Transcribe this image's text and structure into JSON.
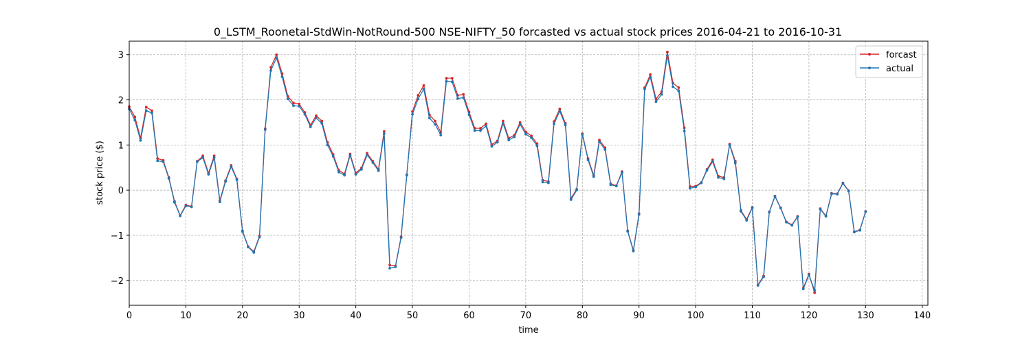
{
  "chart_data": {
    "type": "line",
    "title": "0_LSTM_Roonetal-StdWin-NotRound-500 NSE-NIFTY_50 forcasted vs actual stock prices 2016-04-21 to 2016-10-31",
    "xlabel": "time",
    "ylabel": "stock price ($)",
    "xlim": [
      0,
      141
    ],
    "ylim": [
      -2.55,
      3.3
    ],
    "xticks": [
      0,
      10,
      20,
      30,
      40,
      50,
      60,
      70,
      80,
      90,
      100,
      110,
      120,
      130,
      140
    ],
    "yticks": [
      -2,
      -1,
      0,
      1,
      2,
      3
    ],
    "grid": true,
    "legend_position": "top-right",
    "colors": {
      "forcast": "#d62728",
      "actual": "#1f77b4"
    },
    "series": [
      {
        "name": "forcast",
        "values": [
          1.85,
          1.62,
          1.15,
          1.84,
          1.76,
          0.7,
          0.66,
          0.28,
          -0.25,
          -0.56,
          -0.33,
          -0.36,
          0.64,
          0.76,
          0.38,
          0.76,
          -0.23,
          0.21,
          0.55,
          0.25,
          -0.9,
          -1.25,
          -1.36,
          -1.02,
          1.36,
          2.72,
          3.0,
          2.58,
          2.08,
          1.93,
          1.91,
          1.72,
          1.44,
          1.65,
          1.53,
          1.06,
          0.79,
          0.44,
          0.36,
          0.8,
          0.38,
          0.49,
          0.82,
          0.64,
          0.46,
          1.3,
          -1.66,
          -1.68,
          -1.03,
          0.34,
          1.74,
          2.1,
          2.32,
          1.67,
          1.53,
          1.28,
          2.48,
          2.48,
          2.1,
          2.12,
          1.73,
          1.37,
          1.37,
          1.47,
          1.01,
          1.09,
          1.53,
          1.15,
          1.22,
          1.5,
          1.29,
          1.2,
          1.03,
          0.22,
          0.19,
          1.52,
          1.8,
          1.48,
          -0.18,
          0.02,
          1.25,
          0.7,
          0.33,
          1.11,
          0.94,
          0.14,
          0.1,
          0.41,
          -0.9,
          -1.33,
          -0.52,
          2.27,
          2.56,
          2.02,
          2.18,
          3.06,
          2.37,
          2.27,
          1.38,
          0.08,
          0.09,
          0.17,
          0.46,
          0.67,
          0.31,
          0.28,
          1.02,
          0.64,
          -0.45,
          -0.65,
          -0.38,
          -2.1,
          -1.9,
          -0.48,
          -0.13,
          -0.39,
          -0.7,
          -0.77,
          -0.58,
          -2.17,
          -1.86,
          -2.27,
          -0.41,
          -0.57,
          -0.07,
          -0.08,
          0.16,
          -0.01,
          -0.92,
          -0.88,
          -0.47
        ]
      },
      {
        "name": "actual",
        "values": [
          1.8,
          1.55,
          1.1,
          1.76,
          1.71,
          0.65,
          0.63,
          0.26,
          -0.27,
          -0.57,
          -0.35,
          -0.37,
          0.63,
          0.72,
          0.35,
          0.72,
          -0.26,
          0.19,
          0.52,
          0.23,
          -0.92,
          -1.26,
          -1.38,
          -1.04,
          1.34,
          2.65,
          2.93,
          2.51,
          2.02,
          1.87,
          1.86,
          1.68,
          1.4,
          1.6,
          1.48,
          1.0,
          0.75,
          0.4,
          0.33,
          0.77,
          0.35,
          0.46,
          0.78,
          0.61,
          0.43,
          1.25,
          -1.73,
          -1.7,
          -1.05,
          0.33,
          1.68,
          2.02,
          2.24,
          1.6,
          1.46,
          1.22,
          2.41,
          2.4,
          2.03,
          2.05,
          1.67,
          1.32,
          1.32,
          1.42,
          0.97,
          1.06,
          1.48,
          1.11,
          1.18,
          1.46,
          1.24,
          1.16,
          0.98,
          0.18,
          0.16,
          1.47,
          1.75,
          1.44,
          -0.21,
          0.0,
          1.23,
          0.67,
          0.3,
          1.07,
          0.9,
          0.12,
          0.09,
          0.39,
          -0.91,
          -1.35,
          -0.54,
          2.24,
          2.5,
          1.96,
          2.12,
          2.98,
          2.29,
          2.2,
          1.31,
          0.04,
          0.07,
          0.16,
          0.44,
          0.63,
          0.28,
          0.25,
          1.0,
          0.6,
          -0.47,
          -0.67,
          -0.39,
          -2.11,
          -1.92,
          -0.49,
          -0.14,
          -0.4,
          -0.71,
          -0.78,
          -0.59,
          -2.19,
          -1.88,
          -2.22,
          -0.42,
          -0.58,
          -0.08,
          -0.09,
          0.15,
          -0.02,
          -0.93,
          -0.89,
          -0.48
        ]
      }
    ]
  }
}
